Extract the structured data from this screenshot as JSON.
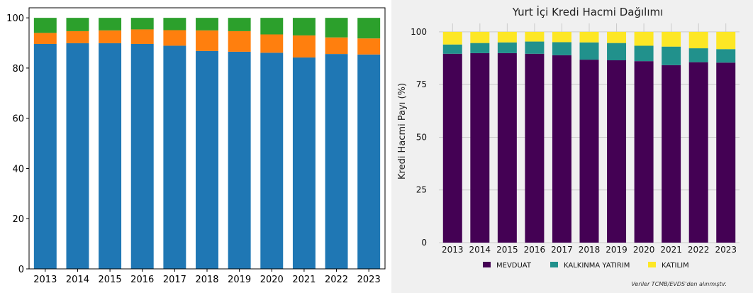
{
  "chart_data": [
    {
      "type": "bar",
      "stacked": true,
      "title": "",
      "xlabel": "",
      "ylabel": "",
      "categories": [
        "2013",
        "2014",
        "2015",
        "2016",
        "2017",
        "2018",
        "2019",
        "2020",
        "2021",
        "2022",
        "2023"
      ],
      "ylim": [
        0,
        104
      ],
      "yticks": [
        0,
        20,
        40,
        60,
        80,
        100
      ],
      "grid": false,
      "series": [
        {
          "color": "#1f77b4",
          "values": [
            89.6,
            89.9,
            89.9,
            89.6,
            88.9,
            86.8,
            86.5,
            86.1,
            84.2,
            85.6,
            85.4
          ]
        },
        {
          "color": "#ff7f0e",
          "values": [
            4.4,
            4.8,
            5.1,
            5.8,
            6.2,
            8.2,
            8.2,
            7.3,
            8.8,
            6.6,
            6.4
          ]
        },
        {
          "color": "#2ca02c",
          "values": [
            6.0,
            5.3,
            5.0,
            4.6,
            4.9,
            5.0,
            5.3,
            6.6,
            7.0,
            7.8,
            8.2
          ]
        }
      ]
    },
    {
      "type": "bar",
      "stacked": true,
      "title": "Yurt İçi Kredi Hacmi Dağılımı",
      "xlabel": "",
      "ylabel": "Kredi Hacmi Payı (%)",
      "categories": [
        "2013",
        "2014",
        "2015",
        "2016",
        "2017",
        "2018",
        "2019",
        "2020",
        "2021",
        "2022",
        "2023"
      ],
      "ylim": [
        0,
        104
      ],
      "yticks": [
        0,
        25,
        50,
        75,
        100
      ],
      "grid": true,
      "legend_position": "bottom",
      "note": "Veriler TCMB/EVDS'den alınmıştır.",
      "series": [
        {
          "name": "MEVDUAT",
          "color": "#440154",
          "values": [
            89.6,
            89.9,
            89.9,
            89.6,
            88.9,
            86.8,
            86.5,
            86.1,
            84.2,
            85.6,
            85.4
          ]
        },
        {
          "name": "KALKINMA YATIRIM",
          "color": "#21918c",
          "values": [
            4.4,
            4.8,
            5.1,
            5.8,
            6.2,
            8.2,
            8.2,
            7.3,
            8.8,
            6.6,
            6.4
          ]
        },
        {
          "name": "KATILIM",
          "color": "#fde725",
          "values": [
            6.0,
            5.3,
            5.0,
            4.6,
            4.9,
            5.0,
            5.3,
            6.6,
            7.0,
            7.8,
            8.2
          ]
        }
      ]
    }
  ]
}
